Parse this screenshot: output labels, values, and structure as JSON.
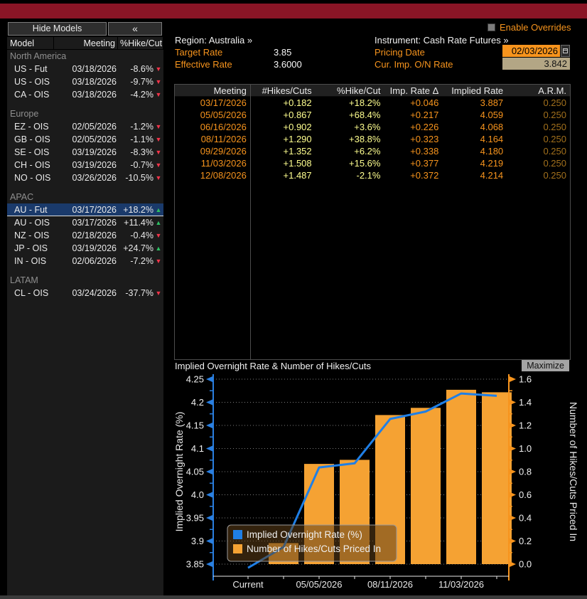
{
  "window": {
    "titlebar_color": "#8a1526"
  },
  "sidebar": {
    "hide_models_button": "Hide Models",
    "collapse_button": "«",
    "columns": [
      "Model",
      "Meeting",
      "%Hike/Cut"
    ],
    "groups": [
      {
        "label": "North America",
        "rows": [
          {
            "model": "US - Fut",
            "meeting": "03/18/2026",
            "value": "-8.6%",
            "direction": "down",
            "selected": false
          },
          {
            "model": "US - OIS",
            "meeting": "03/18/2026",
            "value": "-9.7%",
            "direction": "down",
            "selected": false
          },
          {
            "model": "CA - OIS",
            "meeting": "03/18/2026",
            "value": "-4.2%",
            "direction": "down",
            "selected": false
          }
        ]
      },
      {
        "label": "Europe",
        "rows": [
          {
            "model": "EZ - OIS",
            "meeting": "02/05/2026",
            "value": "-1.2%",
            "direction": "down",
            "selected": false
          },
          {
            "model": "GB - OIS",
            "meeting": "02/05/2026",
            "value": "-1.1%",
            "direction": "down",
            "selected": false
          },
          {
            "model": "SE - OIS",
            "meeting": "03/19/2026",
            "value": "-8.3%",
            "direction": "down",
            "selected": false
          },
          {
            "model": "CH - OIS",
            "meeting": "03/19/2026",
            "value": "-0.7%",
            "direction": "down",
            "selected": false
          },
          {
            "model": "NO - OIS",
            "meeting": "03/26/2026",
            "value": "-10.5%",
            "direction": "down",
            "selected": false
          }
        ]
      },
      {
        "label": "APAC",
        "rows": [
          {
            "model": "AU - Fut",
            "meeting": "03/17/2026",
            "value": "+18.2%",
            "direction": "up",
            "selected": true
          },
          {
            "model": "AU - OIS",
            "meeting": "03/17/2026",
            "value": "+11.4%",
            "direction": "up",
            "selected": false
          },
          {
            "model": "NZ - OIS",
            "meeting": "02/18/2026",
            "value": "-0.4%",
            "direction": "down",
            "selected": false
          },
          {
            "model": "JP - OIS",
            "meeting": "03/19/2026",
            "value": "+24.7%",
            "direction": "up",
            "selected": false
          },
          {
            "model": "IN - OIS",
            "meeting": "02/06/2026",
            "value": "-7.2%",
            "direction": "down",
            "selected": false
          }
        ]
      },
      {
        "label": "LATAM",
        "rows": [
          {
            "model": "CL - OIS",
            "meeting": "03/24/2026",
            "value": "-37.7%",
            "direction": "down",
            "selected": false
          }
        ]
      }
    ]
  },
  "header": {
    "enable_overrides_label": "Enable Overrides",
    "region_link": "Region: Australia »",
    "instrument_link": "Instrument: Cash Rate Futures »",
    "target_rate_label": "Target Rate",
    "target_rate_value": "3.85",
    "effective_rate_label": "Effective Rate",
    "effective_rate_value": "3.6000",
    "pricing_date_label": "Pricing Date",
    "pricing_date_value": "02/03/2026",
    "cur_imp_on_rate_label": "Cur. Imp. O/N Rate",
    "cur_imp_on_rate_value": "3.842"
  },
  "table": {
    "columns": [
      "Meeting",
      "#Hikes/Cuts",
      "%Hike/Cut",
      "Imp. Rate Δ",
      "Implied Rate",
      "A.R.M."
    ],
    "rows": [
      [
        "03/17/2026",
        "+0.182",
        "+18.2%",
        "+0.046",
        "3.887",
        "0.250"
      ],
      [
        "05/05/2026",
        "+0.867",
        "+68.4%",
        "+0.217",
        "4.059",
        "0.250"
      ],
      [
        "06/16/2026",
        "+0.902",
        "+3.6%",
        "+0.226",
        "4.068",
        "0.250"
      ],
      [
        "08/11/2026",
        "+1.290",
        "+38.8%",
        "+0.323",
        "4.164",
        "0.250"
      ],
      [
        "09/29/2026",
        "+1.352",
        "+6.2%",
        "+0.338",
        "4.180",
        "0.250"
      ],
      [
        "11/03/2026",
        "+1.508",
        "+15.6%",
        "+0.377",
        "4.219",
        "0.250"
      ],
      [
        "12/08/2026",
        "+1.487",
        "-2.1%",
        "+0.372",
        "4.214",
        "0.250"
      ]
    ]
  },
  "chart": {
    "title": "Implied Overnight Rate & Number of Hikes/Cuts",
    "maximize_button": "Maximize"
  },
  "chart_data": {
    "type": "combo",
    "title": "Implied Overnight Rate & Number of Hikes/Cuts",
    "categories": [
      "Current",
      "03/17/2026",
      "05/05/2026",
      "06/16/2026",
      "08/11/2026",
      "09/29/2026",
      "11/03/2026",
      "12/08/2026"
    ],
    "x_tick_labels": [
      "Current",
      null,
      "05/05/2026",
      null,
      "08/11/2026",
      null,
      "11/03/2026",
      null
    ],
    "series": [
      {
        "name": "Implied Overnight Rate (%)",
        "type": "line",
        "axis": "left",
        "color": "#1f7fe6",
        "values": [
          3.842,
          3.887,
          4.059,
          4.068,
          4.164,
          4.18,
          4.219,
          4.214
        ]
      },
      {
        "name": "Number of Hikes/Cuts Priced In",
        "type": "bar",
        "axis": "right",
        "color": "#f5a233",
        "values": [
          null,
          0.182,
          0.867,
          0.902,
          1.29,
          1.352,
          1.508,
          1.487
        ]
      }
    ],
    "left_axis": {
      "label": "Implied Overnight Rate (%)",
      "min": 3.85,
      "max": 4.25,
      "color": "#2a7fe0",
      "ticks": [
        "4.25",
        "4.2",
        "4.15",
        "4.1",
        "4.05",
        "4.0",
        "3.95",
        "3.9",
        "3.85"
      ]
    },
    "right_axis": {
      "label": "Number of Hikes/Cuts Priced In",
      "min": 0.0,
      "max": 1.6,
      "color": "#f7941d",
      "ticks": [
        "1.6",
        "1.4",
        "1.2",
        "1.0",
        "0.8",
        "0.6",
        "0.4",
        "0.2",
        "0.0"
      ]
    },
    "grid": "dotted",
    "legend_position": "bottom-left"
  }
}
